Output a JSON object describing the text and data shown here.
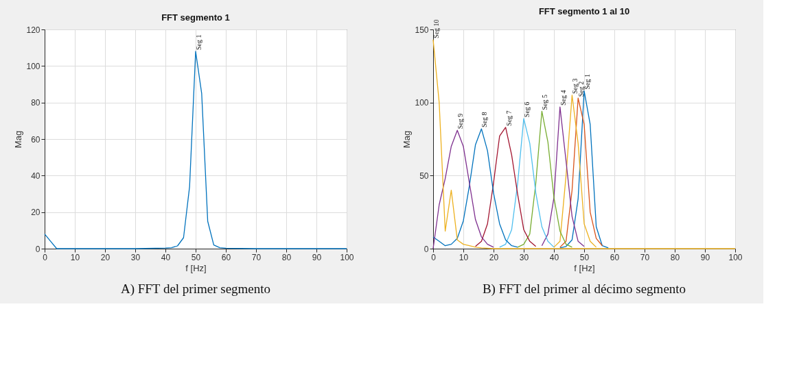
{
  "chart_data": [
    {
      "type": "line",
      "title": "FFT segmento 1",
      "xlabel": "f [Hz]",
      "ylabel": "Mag",
      "xlim": [
        0,
        100
      ],
      "ylim": [
        0,
        120
      ],
      "xticks": [
        0,
        10,
        20,
        30,
        40,
        50,
        60,
        70,
        80,
        90,
        100
      ],
      "yticks": [
        0,
        20,
        40,
        60,
        80,
        100,
        120
      ],
      "grid": true,
      "annotations": [
        "A) FFT del primer segmento"
      ],
      "series": [
        {
          "name": "Seg 1",
          "color": "#0072bd",
          "x": [
            0,
            2,
            4,
            10,
            20,
            30,
            40,
            42,
            44,
            46,
            48,
            50,
            52,
            54,
            56,
            58,
            60,
            70,
            80,
            90,
            100
          ],
          "values": [
            8,
            4,
            0,
            0,
            0,
            0,
            0.3,
            0.5,
            1.5,
            6,
            34,
            108,
            85,
            15,
            2,
            0.5,
            0.2,
            0,
            0,
            0,
            0
          ]
        }
      ]
    },
    {
      "type": "line",
      "title": "FFT segmento 1 al 10",
      "xlabel": "f [Hz]",
      "ylabel": "Mag",
      "xlim": [
        0,
        100
      ],
      "ylim": [
        0,
        150
      ],
      "xticks": [
        0,
        10,
        20,
        30,
        40,
        50,
        60,
        70,
        80,
        90,
        100
      ],
      "yticks": [
        0,
        50,
        100,
        150
      ],
      "grid": true,
      "annotations": [
        "B) FFT del primer al décimo segmento"
      ],
      "series": [
        {
          "name": "Seg 1",
          "color": "#0072bd",
          "x": [
            42,
            44,
            46,
            48,
            50,
            52,
            54,
            56,
            58
          ],
          "values": [
            0.5,
            1.5,
            6,
            34,
            108,
            85,
            15,
            2,
            0.5
          ]
        },
        {
          "name": "Seg 2",
          "color": "#d95319",
          "x": [
            42,
            44,
            46,
            48,
            50,
            52,
            54,
            56
          ],
          "values": [
            1,
            5,
            40,
            103,
            85,
            25,
            7,
            2
          ]
        },
        {
          "name": "Seg 3",
          "color": "#edb120",
          "x": [
            40,
            42,
            44,
            46,
            48,
            50,
            52,
            54
          ],
          "values": [
            1,
            5,
            50,
            105,
            72,
            17,
            5,
            1
          ]
        },
        {
          "name": "Seg 4",
          "color": "#7e2f8e",
          "x": [
            36,
            38,
            40,
            42,
            44,
            46,
            48,
            50
          ],
          "values": [
            2,
            10,
            35,
            97,
            60,
            22,
            5,
            1.5
          ]
        },
        {
          "name": "Seg 5",
          "color": "#77ac30",
          "x": [
            28,
            30,
            32,
            34,
            36,
            38,
            40,
            42,
            44,
            46
          ],
          "values": [
            1,
            3,
            10,
            45,
            94,
            73,
            35,
            12,
            3,
            1
          ]
        },
        {
          "name": "Seg 6",
          "color": "#4dbeee",
          "x": [
            22,
            24,
            26,
            28,
            30,
            32,
            34,
            36,
            38,
            40
          ],
          "values": [
            1,
            3,
            13,
            45,
            89,
            72,
            38,
            15,
            5,
            1
          ]
        },
        {
          "name": "Seg 7",
          "color": "#a2142f",
          "x": [
            14,
            16,
            18,
            20,
            22,
            24,
            26,
            28,
            30,
            32,
            34
          ],
          "values": [
            1.5,
            5,
            17,
            45,
            77,
            83,
            64,
            37,
            13,
            5,
            1.5
          ]
        },
        {
          "name": "Seg 8",
          "color": "#0072bd",
          "x": [
            0,
            2,
            4,
            6,
            8,
            10,
            12,
            14,
            16,
            18,
            20,
            22,
            24,
            26,
            28
          ],
          "values": [
            8,
            5,
            2,
            3,
            7,
            19,
            43,
            71,
            82,
            67,
            38,
            17,
            6,
            2,
            1
          ]
        },
        {
          "name": "Seg 9",
          "color": "#7e2f8e",
          "x": [
            0,
            2,
            4,
            6,
            8,
            10,
            12,
            14,
            16,
            18,
            20
          ],
          "values": [
            0,
            30,
            48,
            70,
            81,
            70,
            45,
            20,
            8,
            3,
            1
          ]
        },
        {
          "name": "Seg 10",
          "color": "#edb120",
          "x": [
            0,
            2,
            4,
            6,
            8,
            10,
            12,
            14,
            16,
            20,
            30,
            60,
            70,
            80,
            90,
            100
          ],
          "values": [
            143,
            100,
            12,
            40,
            6,
            3,
            2,
            1,
            0.5,
            0,
            0,
            0,
            0,
            0,
            0,
            0
          ]
        }
      ]
    }
  ]
}
